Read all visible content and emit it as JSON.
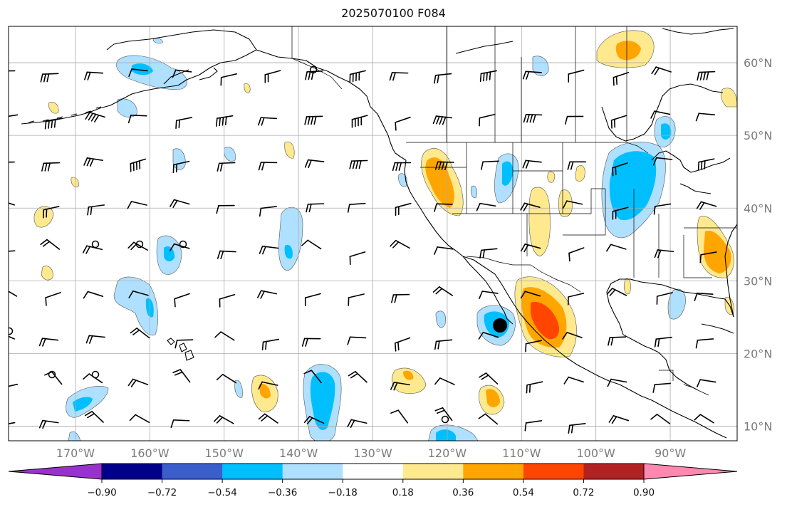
{
  "title": "2025070100 F084",
  "map": {
    "projection": "PlateCarree",
    "lon_range": [
      -179,
      -81
    ],
    "lat_range": [
      8,
      65
    ],
    "grid": true,
    "lon_ticks": [
      {
        "value": -170,
        "label": "170°W"
      },
      {
        "value": -160,
        "label": "160°W"
      },
      {
        "value": -150,
        "label": "150°W"
      },
      {
        "value": -140,
        "label": "140°W"
      },
      {
        "value": -130,
        "label": "130°W"
      },
      {
        "value": -120,
        "label": "120°W"
      },
      {
        "value": -110,
        "label": "110°W"
      },
      {
        "value": -100,
        "label": "100°W"
      },
      {
        "value": -90,
        "label": "90°W"
      }
    ],
    "lat_ticks": [
      {
        "value": 10,
        "label": "10°N"
      },
      {
        "value": 20,
        "label": "20°N"
      },
      {
        "value": 30,
        "label": "30°N"
      },
      {
        "value": 40,
        "label": "40°N"
      },
      {
        "value": 50,
        "label": "50°N"
      },
      {
        "value": 60,
        "label": "60°N"
      }
    ],
    "features": [
      "coastlines",
      "country borders",
      "state/province borders",
      "wind barbs",
      "filled contours",
      "storm center marker"
    ]
  },
  "colorbar": {
    "levels": [
      -0.9,
      -0.72,
      -0.54,
      -0.36,
      -0.18,
      0.18,
      0.36,
      0.54,
      0.72,
      0.9
    ],
    "labels": [
      "−0.90",
      "−0.72",
      "−0.54",
      "−0.36",
      "−0.18",
      "0.18",
      "0.36",
      "0.54",
      "0.72",
      "0.90"
    ],
    "colors": [
      "#9932cc",
      "#00008b",
      "#3a5fcd",
      "#00bfff",
      "#b0e0ff",
      "#ffffff",
      "#ffe98f",
      "#ffa500",
      "#ff4500",
      "#b22222",
      "#ff88b0"
    ],
    "extend": "both"
  },
  "fill_colors": {
    "pos1": "#ffe98f",
    "pos2": "#ffa500",
    "pos3": "#ff4500",
    "neg1": "#b0e0ff",
    "neg2": "#00bfff"
  }
}
